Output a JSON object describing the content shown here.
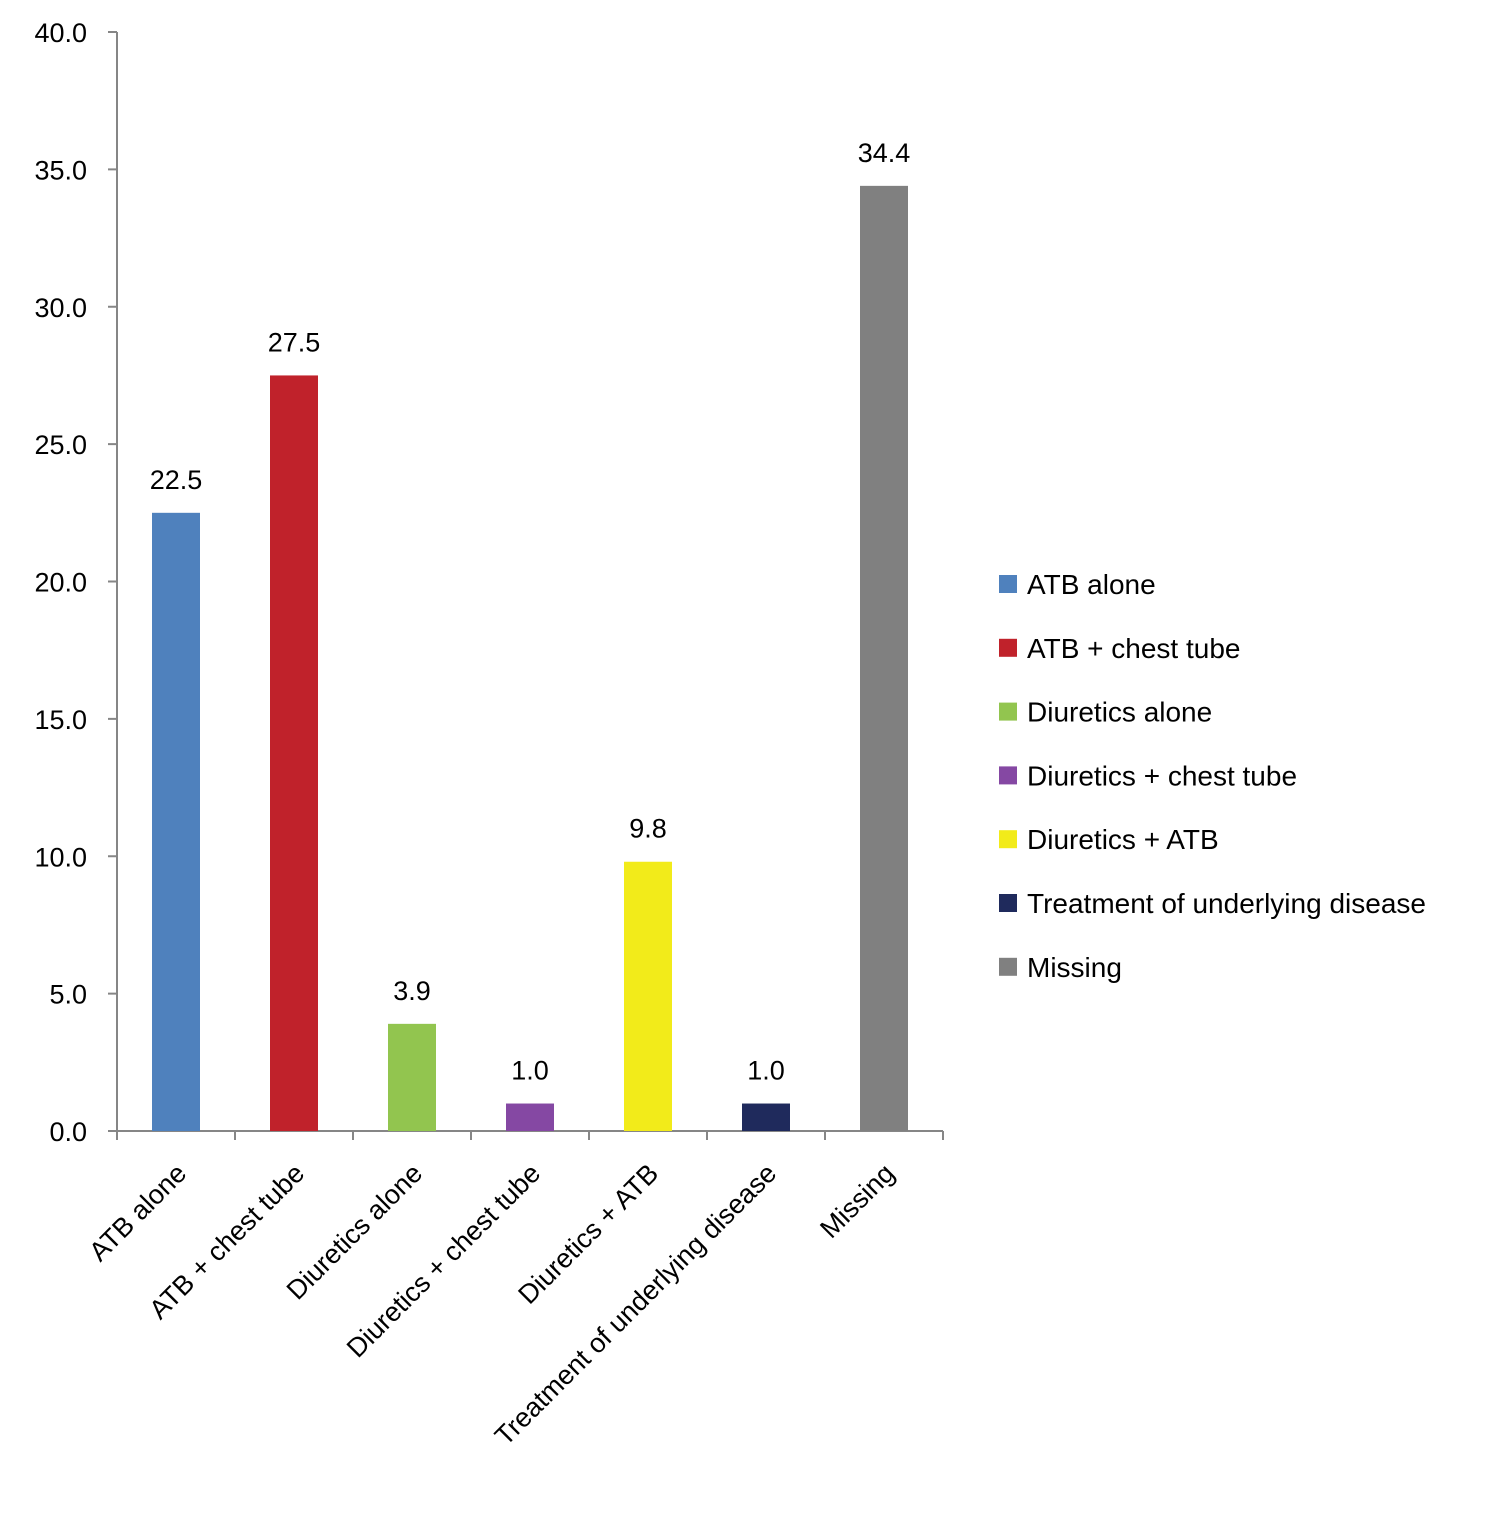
{
  "chart_data": {
    "type": "bar",
    "categories": [
      "ATB alone",
      "ATB + chest tube",
      "Diuretics alone",
      "Diuretics + chest tube",
      "Diuretics + ATB",
      "Treatment of underlying disease",
      "Missing"
    ],
    "values": [
      22.5,
      27.5,
      3.9,
      1.0,
      9.8,
      1.0,
      34.4
    ],
    "value_labels": [
      "22.5",
      "27.5",
      "3.9",
      "1.0",
      "9.8",
      "1.0",
      "34.4"
    ],
    "colors": [
      "#4f81bd",
      "#c0222b",
      "#92c54f",
      "#8548a3",
      "#f2eb1a",
      "#1f2a5c",
      "#808080"
    ],
    "ylim": [
      0,
      40
    ],
    "yticks": [
      0,
      5,
      10,
      15,
      20,
      25,
      30,
      35,
      40
    ],
    "ytick_labels": [
      "0.0",
      "5.0",
      "10.0",
      "15.0",
      "20.0",
      "25.0",
      "30.0",
      "35.0",
      "40.0"
    ],
    "legend": {
      "position": "right",
      "entries": [
        "ATB alone",
        "ATB + chest tube",
        "Diuretics alone",
        "Diuretics + chest tube",
        "Diuretics + ATB",
        "Treatment of underlying disease",
        "Missing"
      ]
    },
    "grid": false,
    "title": "",
    "xlabel": "",
    "ylabel": ""
  }
}
